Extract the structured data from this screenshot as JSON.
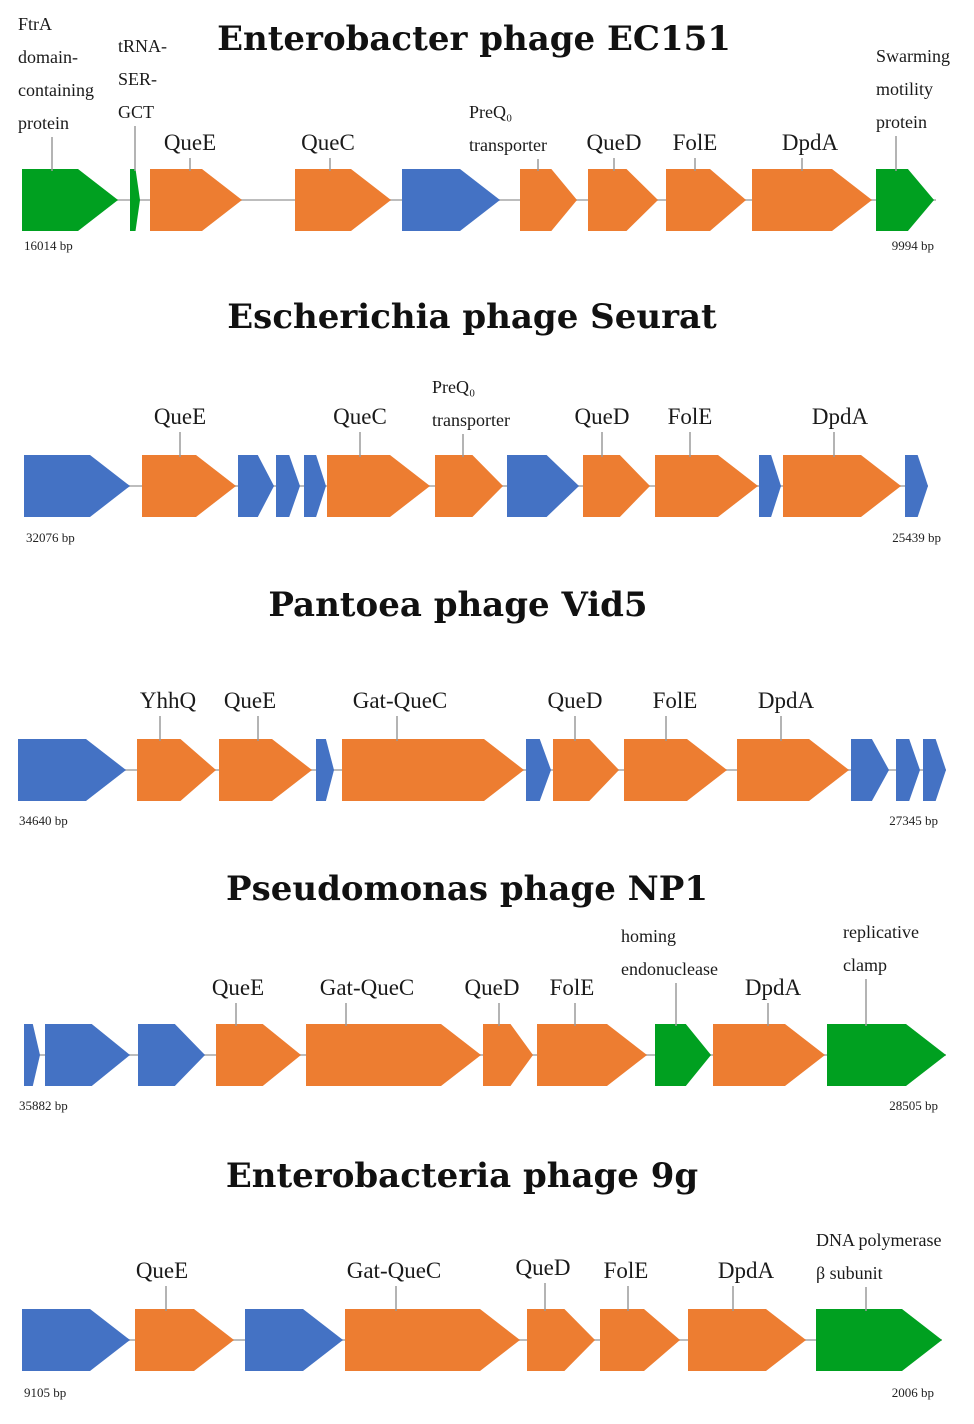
{
  "colors": {
    "queuosine_gene": "#ED7D31",
    "other_gene": "#4472C4",
    "flanking_annotated_gene": "#00A020",
    "backbone": "#BDBDBD"
  },
  "phages": [
    {
      "title": "Enterobacter phage EC151",
      "start_bp": "16014 bp",
      "end_bp": "9994 bp",
      "genes": [
        {
          "color": "green",
          "label_lines": [
            "FtrA",
            "domain-",
            "containing",
            "protein"
          ]
        },
        {
          "color": "green",
          "label_lines": [
            "tRNA-",
            "SER-",
            "GCT"
          ]
        },
        {
          "color": "orange",
          "label_lines": [
            "QueE"
          ]
        },
        {
          "color": "orange",
          "label_lines": [
            "QueC"
          ]
        },
        {
          "color": "blue",
          "label_lines": []
        },
        {
          "color": "orange",
          "label_lines": [
            "PreQ₀",
            "transporter"
          ]
        },
        {
          "color": "orange",
          "label_lines": [
            "QueD"
          ]
        },
        {
          "color": "orange",
          "label_lines": [
            "FolE"
          ]
        },
        {
          "color": "orange",
          "label_lines": [
            "DpdA"
          ]
        },
        {
          "color": "green",
          "label_lines": [
            "Swarming",
            "motility",
            "protein"
          ]
        }
      ]
    },
    {
      "title": "Escherichia phage Seurat",
      "start_bp": "32076 bp",
      "end_bp": "25439 bp",
      "genes": [
        {
          "color": "blue",
          "label_lines": []
        },
        {
          "color": "orange",
          "label_lines": [
            "QueE"
          ]
        },
        {
          "color": "blue",
          "label_lines": []
        },
        {
          "color": "blue",
          "label_lines": []
        },
        {
          "color": "blue",
          "label_lines": []
        },
        {
          "color": "orange",
          "label_lines": [
            "QueC"
          ]
        },
        {
          "color": "orange",
          "label_lines": [
            "PreQ₀",
            "transporter"
          ]
        },
        {
          "color": "blue",
          "label_lines": []
        },
        {
          "color": "orange",
          "label_lines": [
            "QueD"
          ]
        },
        {
          "color": "orange",
          "label_lines": [
            "FolE"
          ]
        },
        {
          "color": "blue",
          "label_lines": []
        },
        {
          "color": "orange",
          "label_lines": [
            "DpdA"
          ]
        },
        {
          "color": "blue",
          "label_lines": []
        }
      ]
    },
    {
      "title": "Pantoea phage Vid5",
      "start_bp": "34640 bp",
      "end_bp": "27345 bp",
      "genes": [
        {
          "color": "blue",
          "label_lines": []
        },
        {
          "color": "orange",
          "label_lines": [
            "YhhQ"
          ]
        },
        {
          "color": "orange",
          "label_lines": [
            "QueE"
          ]
        },
        {
          "color": "blue",
          "label_lines": []
        },
        {
          "color": "orange",
          "label_lines": [
            "Gat-QueC"
          ]
        },
        {
          "color": "blue",
          "label_lines": []
        },
        {
          "color": "orange",
          "label_lines": [
            "QueD"
          ]
        },
        {
          "color": "orange",
          "label_lines": [
            "FolE"
          ]
        },
        {
          "color": "orange",
          "label_lines": [
            "DpdA"
          ]
        },
        {
          "color": "blue",
          "label_lines": []
        },
        {
          "color": "blue",
          "label_lines": []
        },
        {
          "color": "blue",
          "label_lines": []
        }
      ]
    },
    {
      "title": "Pseudomonas phage NP1",
      "start_bp": "35882 bp",
      "end_bp": "28505 bp",
      "genes": [
        {
          "color": "blue",
          "label_lines": []
        },
        {
          "color": "blue",
          "label_lines": []
        },
        {
          "color": "blue",
          "label_lines": []
        },
        {
          "color": "orange",
          "label_lines": [
            "QueE"
          ]
        },
        {
          "color": "orange",
          "label_lines": [
            "Gat-QueC"
          ]
        },
        {
          "color": "orange",
          "label_lines": [
            "QueD"
          ]
        },
        {
          "color": "orange",
          "label_lines": [
            "FolE"
          ]
        },
        {
          "color": "green",
          "label_lines": [
            "homing",
            "endonuclease"
          ]
        },
        {
          "color": "orange",
          "label_lines": [
            "DpdA"
          ]
        },
        {
          "color": "green",
          "label_lines": [
            "replicative",
            "clamp"
          ]
        }
      ]
    },
    {
      "title": "Enterobacteria phage 9g",
      "start_bp": "9105 bp",
      "end_bp": "2006 bp",
      "genes": [
        {
          "color": "blue",
          "label_lines": []
        },
        {
          "color": "orange",
          "label_lines": [
            "QueE"
          ]
        },
        {
          "color": "blue",
          "label_lines": []
        },
        {
          "color": "orange",
          "label_lines": [
            "Gat-QueC"
          ]
        },
        {
          "color": "orange",
          "label_lines": [
            "QueD"
          ]
        },
        {
          "color": "orange",
          "label_lines": [
            "FolE"
          ]
        },
        {
          "color": "orange",
          "label_lines": [
            "DpdA"
          ]
        },
        {
          "color": "green",
          "label_lines": [
            "DNA polymerase",
            "β subunit"
          ]
        }
      ]
    }
  ]
}
